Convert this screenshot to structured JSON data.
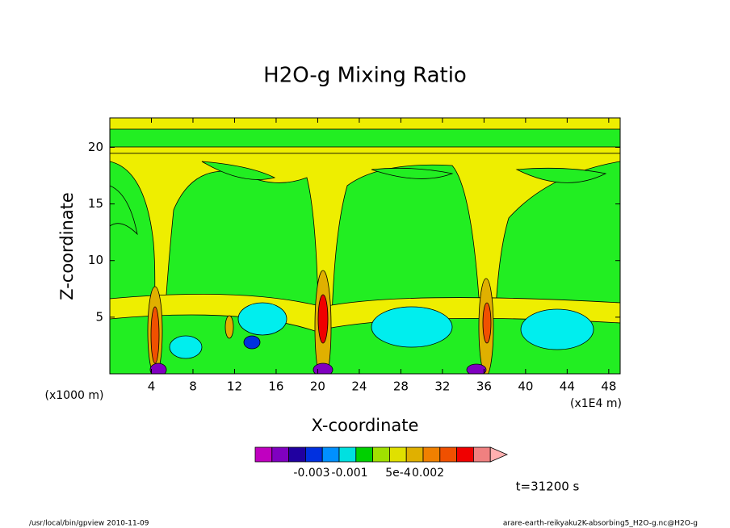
{
  "chart_data": {
    "type": "contour",
    "title": "H2O-g Mixing Ratio",
    "xlabel": "X-coordinate",
    "ylabel": "Z-coordinate",
    "x_unit_left": "(x1000 m)",
    "x_unit_right": "(x1E4 m)",
    "xlim": [
      0,
      49.1
    ],
    "ylim": [
      0,
      22.6
    ],
    "xticks": [
      4,
      8,
      12,
      16,
      20,
      24,
      28,
      32,
      36,
      40,
      44,
      48
    ],
    "yticks": [
      5,
      10,
      15,
      20
    ],
    "colorbar_colors": [
      "#c000c0",
      "#8000c0",
      "#2000a0",
      "#0030e0",
      "#0090ff",
      "#00e0e0",
      "#00d000",
      "#a0e000",
      "#e0e000",
      "#e0b000",
      "#f08000",
      "#f05000",
      "#f00000",
      "#f08080",
      "#ffb0b0"
    ],
    "colorbar_labels": [
      "-0.003",
      "-0.001",
      "5e-4",
      "0.002"
    ],
    "time_label": "t=31200 s",
    "footer_left": "/usr/local/bin/gpview  2010-11-09",
    "footer_right": "arare-earth-reikyaku2K-absorbing5_H2O-g.nc@H2O-g"
  }
}
